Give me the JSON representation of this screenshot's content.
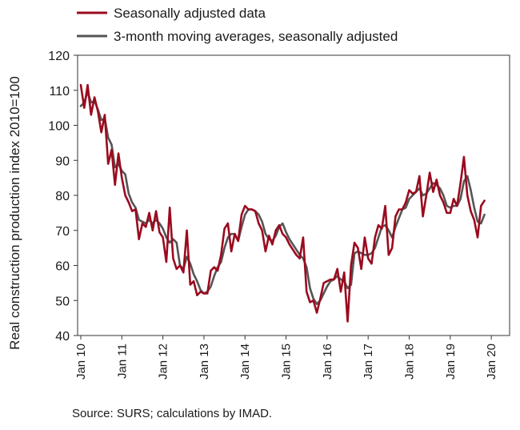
{
  "chart_data": {
    "type": "line",
    "ylabel": "Real construction production index 2010=100",
    "xlabel": "",
    "ylim": [
      40,
      120
    ],
    "yticks": [
      40,
      50,
      60,
      70,
      80,
      90,
      100,
      110,
      120
    ],
    "xticks": [
      "Jan 10",
      "Jan 11",
      "Jan 12",
      "Jan 13",
      "Jan 14",
      "Jan 15",
      "Jan 16",
      "Jan 17",
      "Jan 18",
      "Jan 19",
      "Jan 20"
    ],
    "grid": false,
    "legend_position": "top-left",
    "x_start": "Jan 10",
    "series": [
      {
        "name": "Seasonally adjusted data",
        "color": "#9b0a1e",
        "values": [
          111.5,
          105.0,
          111.5,
          103.0,
          108.0,
          104.0,
          98.0,
          103.0,
          89.0,
          93.0,
          83.0,
          92.0,
          85.0,
          80.0,
          78.0,
          75.5,
          76.0,
          67.5,
          72.0,
          71.0,
          75.0,
          70.0,
          75.5,
          69.5,
          68.0,
          61.0,
          76.5,
          62.0,
          59.0,
          60.0,
          58.0,
          70.0,
          54.5,
          55.5,
          51.5,
          52.5,
          52.0,
          52.0,
          58.5,
          59.5,
          58.5,
          63.0,
          70.5,
          72.0,
          64.0,
          69.0,
          67.0,
          74.5,
          77.0,
          76.0,
          76.0,
          75.5,
          72.0,
          70.0,
          64.0,
          68.5,
          66.0,
          70.0,
          71.5,
          69.0,
          68.0,
          66.0,
          64.5,
          63.0,
          62.0,
          68.0,
          52.5,
          49.5,
          50.0,
          46.5,
          50.5,
          55.0,
          55.5,
          56.0,
          56.0,
          59.0,
          52.5,
          58.0,
          44.0,
          60.0,
          66.5,
          65.0,
          59.0,
          68.0,
          62.0,
          60.5,
          68.0,
          71.5,
          70.5,
          77.0,
          63.0,
          65.0,
          74.0,
          76.0,
          76.0,
          78.0,
          81.5,
          80.5,
          81.0,
          85.5,
          74.0,
          80.0,
          86.5,
          81.0,
          84.5,
          80.0,
          78.0,
          75.0,
          75.0,
          79.0,
          77.0,
          83.5,
          91.0,
          80.0,
          75.5,
          73.0,
          68.0,
          77.0,
          78.5
        ]
      },
      {
        "name": "3-month moving averages, seasonally adjusted",
        "color": "#555555",
        "values": [
          105.5,
          106.5,
          109.5,
          106.5,
          107.0,
          104.5,
          101.5,
          102.0,
          96.5,
          94.5,
          88.0,
          89.0,
          87.0,
          86.0,
          80.5,
          78.0,
          76.5,
          73.0,
          72.5,
          72.0,
          73.0,
          72.0,
          73.0,
          72.0,
          70.5,
          68.0,
          66.5,
          67.5,
          66.5,
          60.0,
          59.0,
          62.5,
          60.5,
          57.5,
          55.5,
          53.0,
          52.0,
          52.5,
          54.0,
          57.0,
          59.5,
          61.0,
          65.0,
          68.0,
          69.0,
          69.0,
          67.0,
          71.0,
          74.5,
          76.0,
          76.0,
          75.5,
          74.5,
          72.5,
          69.0,
          67.5,
          67.0,
          68.5,
          71.0,
          72.0,
          69.5,
          67.5,
          66.0,
          64.5,
          63.0,
          62.0,
          59.5,
          53.5,
          50.5,
          49.0,
          50.0,
          52.0,
          54.0,
          55.5,
          56.0,
          57.0,
          56.0,
          55.5,
          53.5,
          54.5,
          63.5,
          64.0,
          63.5,
          63.0,
          63.0,
          63.5,
          65.0,
          68.0,
          71.0,
          71.5,
          70.0,
          68.0,
          71.0,
          73.5,
          76.0,
          76.5,
          79.0,
          80.0,
          81.0,
          82.0,
          80.0,
          80.5,
          82.0,
          83.5,
          83.0,
          82.0,
          80.0,
          77.0,
          76.5,
          77.0,
          77.0,
          79.0,
          84.0,
          85.5,
          81.5,
          76.5,
          72.5,
          72.0,
          74.5
        ]
      }
    ]
  },
  "legend": {
    "items": [
      {
        "label": "Seasonally adjusted data",
        "color": "#9b0a1e"
      },
      {
        "label": "3-month moving averages, seasonally adjusted",
        "color": "#555555"
      }
    ]
  },
  "source": "Source: SURS; calculations by IMAD."
}
